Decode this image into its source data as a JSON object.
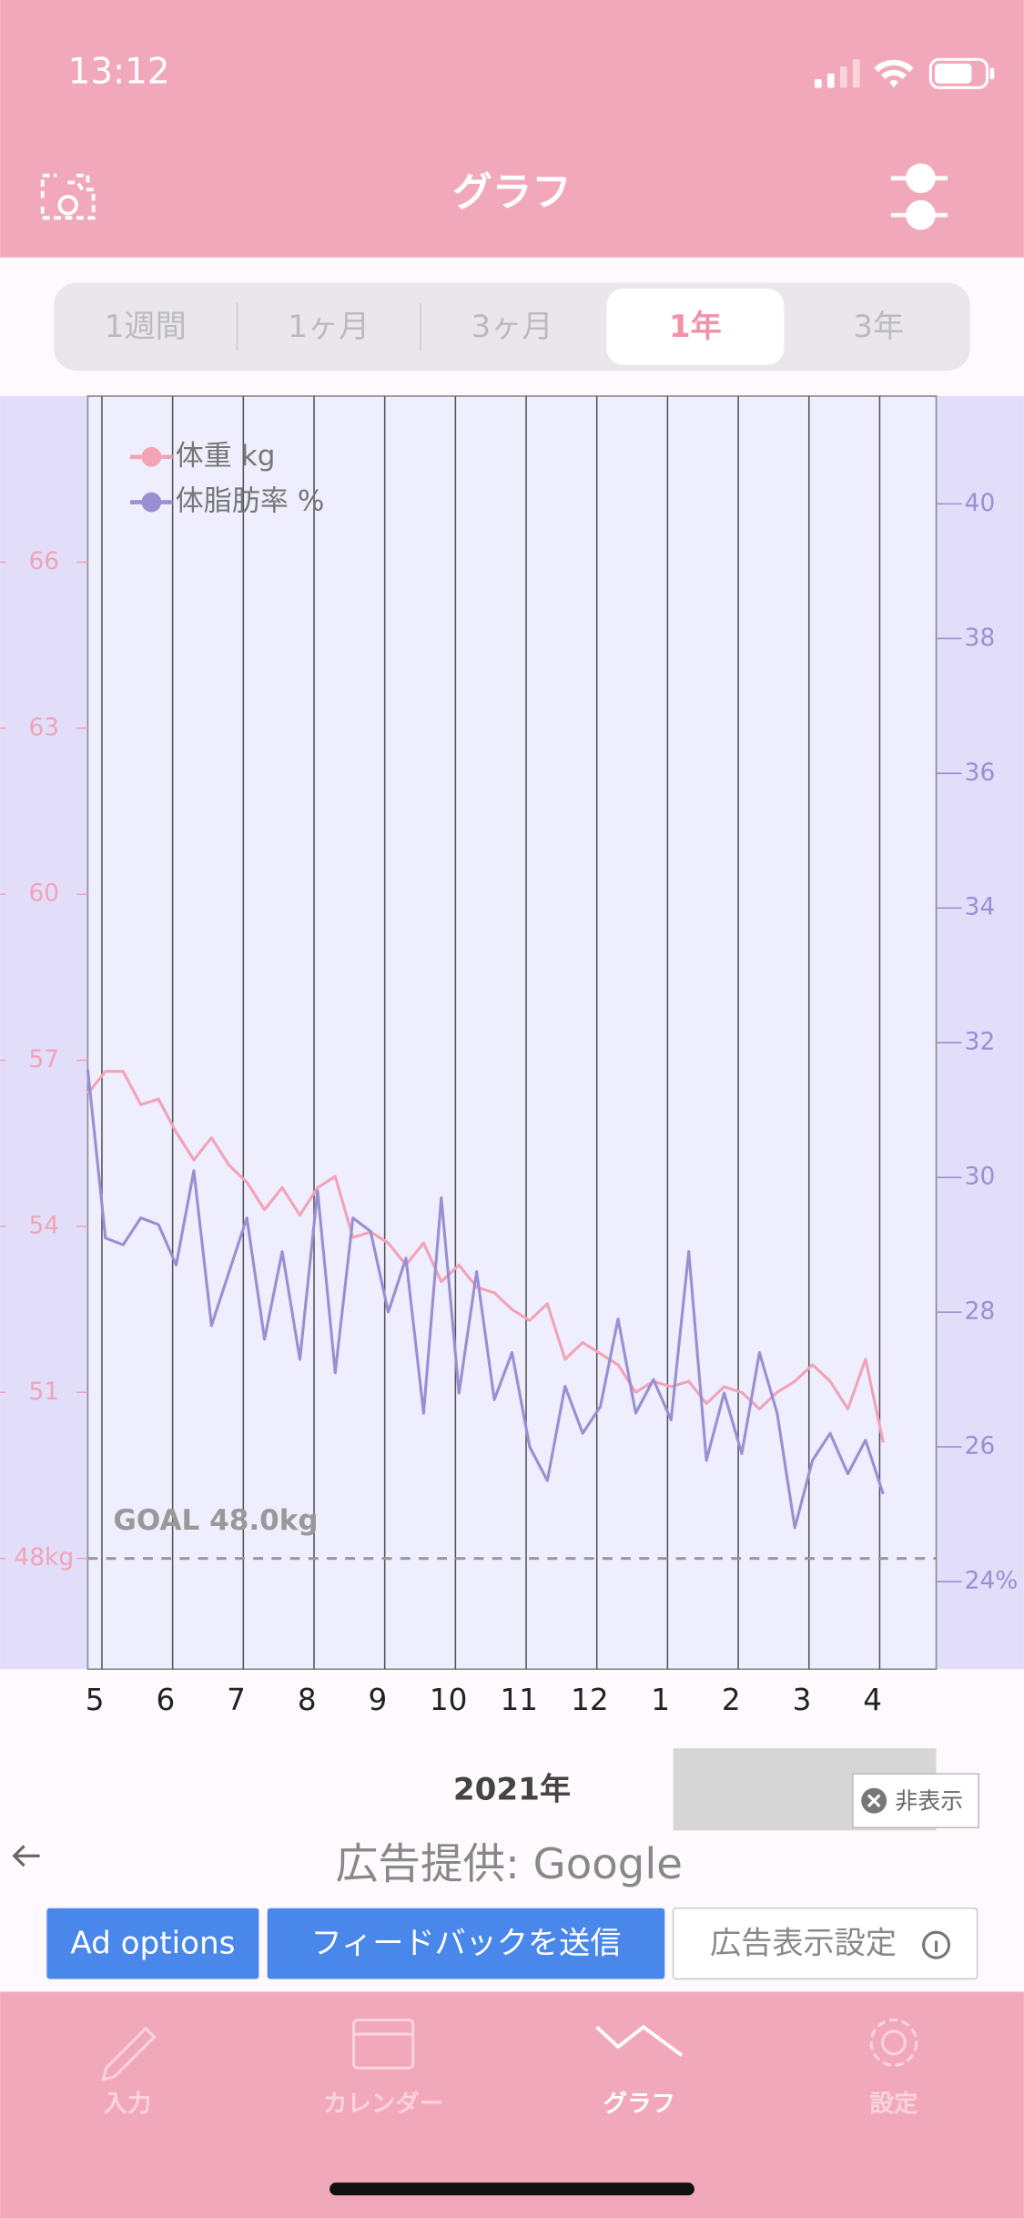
{
  "status_bar": {
    "time": "13:12"
  },
  "header": {
    "title": "グラフ"
  },
  "period_tabs": {
    "labels": [
      "1週間",
      "1ヶ月",
      "3ヶ月",
      "1年",
      "3年"
    ],
    "selected": 3
  },
  "chart_data": {
    "type": "line",
    "x": [
      -0.2,
      0.05,
      0.3,
      0.55,
      0.8,
      1.05,
      1.3,
      1.55,
      1.8,
      2.05,
      2.3,
      2.55,
      2.8,
      3.05,
      3.3,
      3.55,
      3.8,
      4.05,
      4.3,
      4.55,
      4.8,
      5.05,
      5.3,
      5.55,
      5.8,
      6.05,
      6.3,
      6.55,
      6.8,
      7.05,
      7.3,
      7.55,
      7.8,
      8.05,
      8.3,
      8.55,
      8.8,
      9.05,
      9.3,
      9.55,
      9.8,
      10.05,
      10.3,
      10.55,
      10.8,
      11.05
    ],
    "series": [
      {
        "name": "体重 kg",
        "color": "#f2a3b6",
        "values": [
          56.4,
          56.8,
          56.8,
          56.2,
          56.3,
          55.7,
          55.2,
          55.6,
          55.1,
          54.8,
          54.3,
          54.7,
          54.2,
          54.7,
          54.9,
          53.8,
          53.9,
          53.7,
          53.3,
          53.7,
          53.0,
          53.3,
          52.9,
          52.8,
          52.5,
          52.3,
          52.6,
          51.6,
          51.9,
          51.7,
          51.5,
          51.0,
          51.2,
          51.1,
          51.2,
          50.8,
          51.1,
          51.0,
          50.7,
          51.0,
          51.2,
          51.5,
          51.2,
          50.7,
          51.6,
          50.1
        ]
      },
      {
        "name": "体脂肪率 %",
        "color": "#9a8fd2",
        "axis": "y2",
        "values": [
          31.6,
          29.1,
          29.0,
          29.4,
          29.3,
          28.7,
          30.1,
          27.8,
          28.6,
          29.4,
          27.6,
          28.9,
          27.3,
          29.8,
          27.1,
          29.4,
          29.2,
          28.0,
          28.8,
          26.5,
          29.7,
          26.8,
          28.6,
          26.7,
          27.4,
          26.0,
          25.5,
          26.9,
          26.2,
          26.6,
          27.9,
          26.5,
          27.0,
          26.4,
          28.9,
          25.8,
          26.8,
          25.9,
          27.4,
          26.5,
          24.8,
          25.8,
          26.2,
          25.6,
          26.1,
          25.3
        ]
      }
    ],
    "xlim": [
      -0.2,
      11.8
    ],
    "xticks": [
      {
        "value": 0,
        "label": "5"
      },
      {
        "value": 1,
        "label": "6"
      },
      {
        "value": 2,
        "label": "7"
      },
      {
        "value": 3,
        "label": "8"
      },
      {
        "value": 4,
        "label": "9"
      },
      {
        "value": 5,
        "label": "10"
      },
      {
        "value": 6,
        "label": "11"
      },
      {
        "value": 7,
        "label": "12"
      },
      {
        "value": 8,
        "label": "1"
      },
      {
        "value": 9,
        "label": "2"
      },
      {
        "value": 10,
        "label": "3"
      },
      {
        "value": 11,
        "label": "4"
      }
    ],
    "xlabel": "2021年",
    "ylim": [
      46,
      69
    ],
    "yticks": [
      {
        "value": 48,
        "label": "48kg"
      },
      51,
      54,
      57,
      60,
      63,
      66
    ],
    "y2lim": [
      22.7,
      41.6
    ],
    "y2ticks": [
      {
        "value": 24,
        "label": "24%"
      },
      26,
      28,
      30,
      32,
      34,
      36,
      38,
      40
    ],
    "goal": {
      "label": "GOAL 48.0kg",
      "value": 48
    },
    "legend": "upper left"
  },
  "ad": {
    "hide": "非表示",
    "provider": "広告提供: Google",
    "buttons": [
      "Ad options",
      "フィードバックを送信",
      "広告表示設定"
    ]
  },
  "tab_bar": {
    "labels": [
      "入力",
      "カレンダー",
      "グラフ",
      "設定"
    ],
    "selected": 2
  }
}
